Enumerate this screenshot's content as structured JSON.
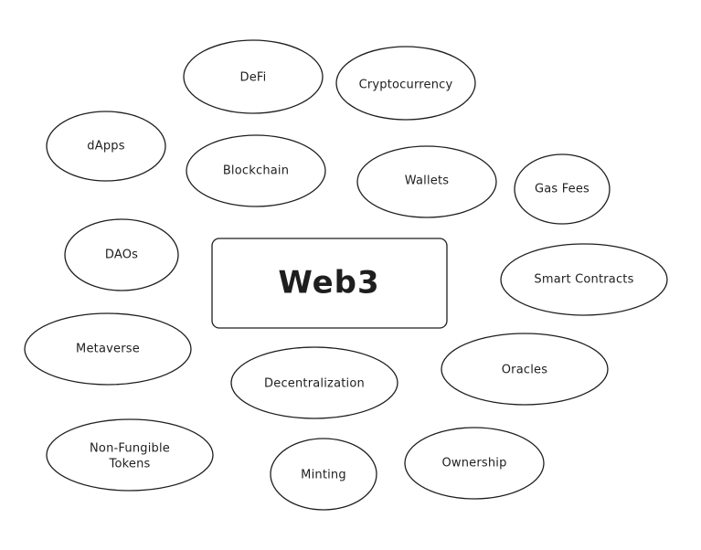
{
  "diagram": {
    "center": {
      "label": "Web3"
    },
    "nodes": [
      {
        "id": "defi",
        "label": "DeFi"
      },
      {
        "id": "cryptocurrency",
        "label": "Cryptocurrency"
      },
      {
        "id": "dapps",
        "label": "dApps"
      },
      {
        "id": "blockchain",
        "label": "Blockchain"
      },
      {
        "id": "wallets",
        "label": "Wallets"
      },
      {
        "id": "gas-fees",
        "label": "Gas Fees"
      },
      {
        "id": "daos",
        "label": "DAOs"
      },
      {
        "id": "smart-contracts",
        "label": "Smart Contracts"
      },
      {
        "id": "metaverse",
        "label": "Metaverse"
      },
      {
        "id": "decentralization",
        "label": "Decentralization"
      },
      {
        "id": "oracles",
        "label": "Oracles"
      },
      {
        "id": "nft",
        "label_line1": "Non-Fungible",
        "label_line2": "Tokens"
      },
      {
        "id": "minting",
        "label": "Minting"
      },
      {
        "id": "ownership",
        "label": "Ownership"
      }
    ]
  }
}
